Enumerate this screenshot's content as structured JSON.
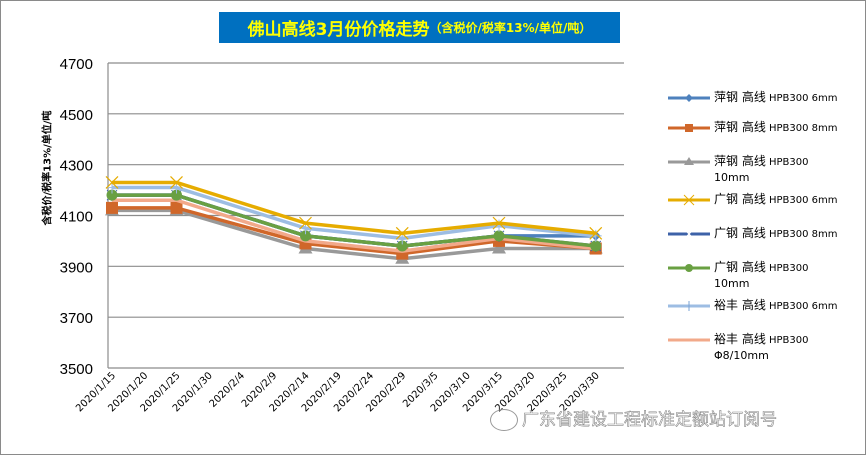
{
  "title": {
    "main": "佛山高线3月份价格走势",
    "sub": "（含税价/税率13%/单位/吨）",
    "bg_color": "#0070c0",
    "text_color": "#ffff00"
  },
  "watermark": "广东省建设工程标准定额站订阅号",
  "chart_data": {
    "type": "line",
    "title": "佛山高线3月份价格走势（含税价/税率13%/单位/吨）",
    "xlabel": "",
    "ylabel": "含税价/税率13%/单位/吨",
    "ylim": [
      3500,
      4700
    ],
    "yticks": [
      3500,
      3700,
      3900,
      4100,
      4300,
      4500,
      4700
    ],
    "xtick_labels": [
      "2020/1/15",
      "2020/1/20",
      "2020/1/25",
      "2020/1/30",
      "2020/2/4",
      "2020/2/9",
      "2020/2/14",
      "2020/2/19",
      "2020/2/24",
      "2020/2/29",
      "2020/3/5",
      "2020/3/10",
      "2020/3/15",
      "2020/3/20",
      "2020/3/25",
      "2020/3/30"
    ],
    "x": [
      "2020/1/15",
      "2020/1/25",
      "2020/2/14",
      "2020/2/29",
      "2020/3/15",
      "2020/3/30"
    ],
    "grid": "horizontal",
    "legend_position": "right",
    "series": [
      {
        "name": "萍钢高线 HPB300 6mm",
        "color": "#4e81bd",
        "marker": "diamond",
        "values": [
          4180,
          4180,
          4020,
          3980,
          4020,
          4020
        ]
      },
      {
        "name": "萍钢高线 HPB300 8mm",
        "color": "#d0672a",
        "marker": "square",
        "values": [
          4130,
          4130,
          3990,
          3950,
          4000,
          3970
        ]
      },
      {
        "name": "萍钢高线 HPB300 10mm",
        "color": "#999999",
        "marker": "triangle",
        "values": [
          4120,
          4120,
          3970,
          3930,
          3970,
          3970
        ]
      },
      {
        "name": "广钢高线 HPB300 6mm",
        "color": "#e6ac00",
        "marker": "x",
        "values": [
          4230,
          4230,
          4070,
          4030,
          4070,
          4030
        ]
      },
      {
        "name": "广钢高线 HPB300 8mm",
        "color": "#3d62a8",
        "marker": "star",
        "values": [
          4180,
          4180,
          4020,
          3980,
          4020,
          3980
        ]
      },
      {
        "name": "广钢高线 HPB300 10mm",
        "color": "#69a042",
        "marker": "circle",
        "values": [
          4180,
          4180,
          4020,
          3980,
          4020,
          3980
        ]
      },
      {
        "name": "裕丰高线 HPB300 6mm",
        "color": "#9dbde3",
        "marker": "plus",
        "values": [
          4210,
          4210,
          4050,
          4010,
          4060,
          4020
        ]
      },
      {
        "name": "裕丰高线 HPB300 Φ8/10mm",
        "color": "#f2a98a",
        "marker": "none",
        "values": [
          4160,
          4160,
          4000,
          3960,
          4010,
          3970
        ]
      }
    ]
  },
  "legend": [
    {
      "cn": "萍钢 高线",
      "en": " HPB300 6mm",
      "en2": ""
    },
    {
      "cn": "萍钢 高线",
      "en": " HPB300 8mm",
      "en2": ""
    },
    {
      "cn": "萍钢 高线",
      "en": " HPB300",
      "en2": "10mm"
    },
    {
      "cn": "广钢 高线",
      "en": " HPB300 6mm",
      "en2": ""
    },
    {
      "cn": "广钢 高线",
      "en": " HPB300 8mm",
      "en2": ""
    },
    {
      "cn": "广钢 高线",
      "en": " HPB300",
      "en2": "10mm"
    },
    {
      "cn": "裕丰 高线",
      "en": " HPB300 6mm",
      "en2": ""
    },
    {
      "cn": "裕丰 高线",
      "en": " HPB300",
      "en2": "Φ8/10mm"
    }
  ]
}
